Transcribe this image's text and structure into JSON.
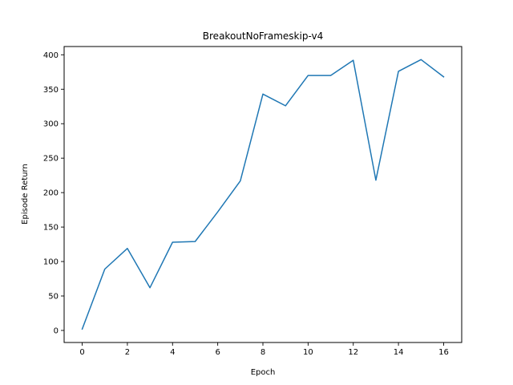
{
  "chart_data": {
    "type": "line",
    "title": "BreakoutNoFrameskip-v4",
    "xlabel": "Epoch",
    "ylabel": "Episode Return",
    "xlim": [
      -0.8,
      16.8
    ],
    "ylim": [
      -17.5,
      412
    ],
    "xticks": [
      0,
      2,
      4,
      6,
      8,
      10,
      12,
      14,
      16
    ],
    "yticks": [
      0,
      50,
      100,
      150,
      200,
      250,
      300,
      350,
      400
    ],
    "grid": false,
    "series": [
      {
        "color": "#1f77b4",
        "x": [
          0,
          1,
          2,
          3,
          4,
          5,
          6,
          7,
          8,
          9,
          10,
          11,
          12,
          13,
          14,
          15,
          16
        ],
        "values": [
          2,
          89,
          119,
          62,
          128,
          129,
          172,
          217,
          343,
          326,
          370,
          370,
          392,
          218,
          376,
          393,
          368
        ]
      }
    ]
  }
}
